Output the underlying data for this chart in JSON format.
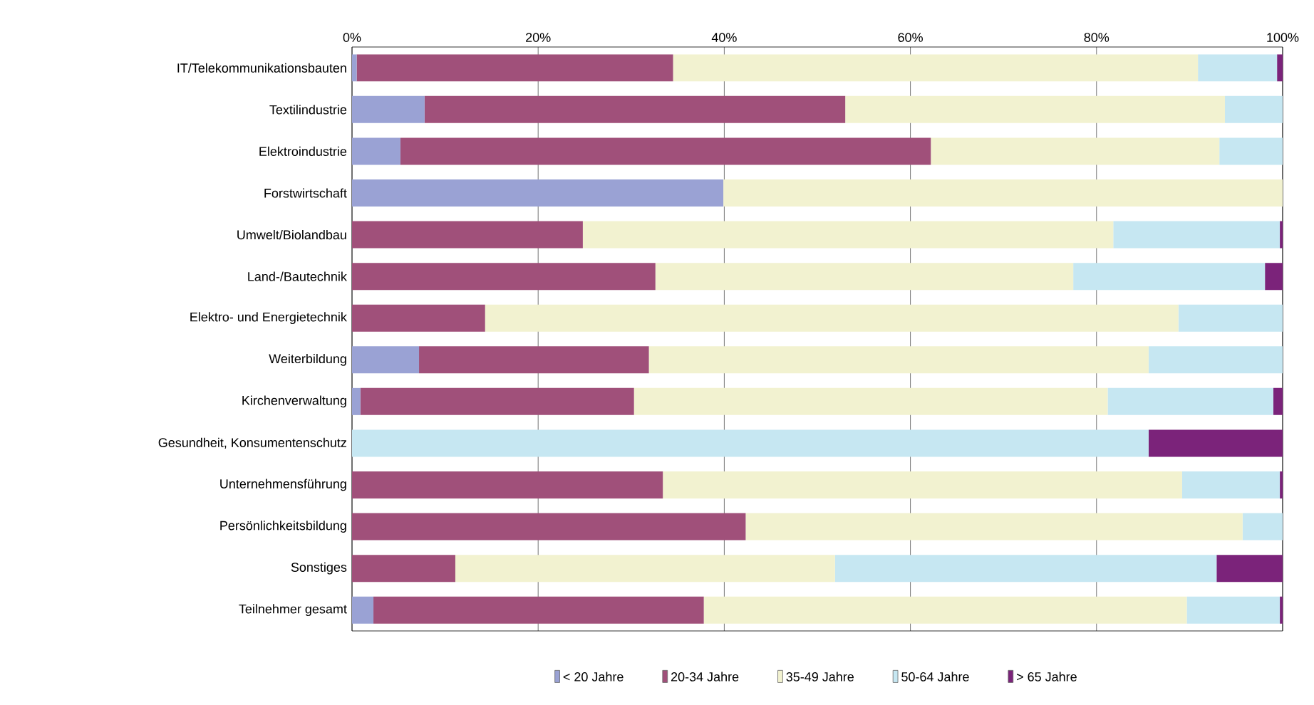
{
  "chart_data": {
    "type": "bar",
    "orientation": "horizontal",
    "stacked": true,
    "categories": [
      "IT/Telekommunikationsbauten",
      "Textilindustrie",
      "Elektroindustrie",
      "Forstwirtschaft",
      "Umwelt/Biolandbau",
      "Land-/Bautechnik",
      "Elektro- und Energietechnik",
      "Weiterbildung",
      "Kirchenverwaltung",
      "Gesundheit, Konsumentenschutz",
      "Unternehmensführung",
      "Persönlichkeitsbildung",
      "Sonstiges",
      "Teilnehmer gesamt"
    ],
    "series": [
      {
        "name": "< 20 Jahre",
        "color": "#9aa2d4",
        "values": [
          0.5,
          7.8,
          5.2,
          39.9,
          0,
          0,
          0,
          7.2,
          0.9,
          0,
          0,
          0,
          0,
          2.3
        ]
      },
      {
        "name": "20-34 Jahre",
        "color": "#a0507a",
        "values": [
          34.0,
          45.2,
          57.0,
          0,
          24.8,
          32.6,
          14.3,
          24.7,
          29.4,
          0,
          33.4,
          42.3,
          11.1,
          35.5
        ]
      },
      {
        "name": "35-49 Jahre",
        "color": "#f2f2d0",
        "values": [
          56.4,
          40.8,
          31.0,
          60.1,
          57.0,
          44.9,
          74.5,
          53.7,
          50.9,
          0,
          55.8,
          53.4,
          40.8,
          51.9
        ]
      },
      {
        "name": "50-64 Jahre",
        "color": "#c6e7f2",
        "values": [
          8.5,
          6.2,
          6.8,
          0,
          17.9,
          20.6,
          11.2,
          14.4,
          17.8,
          85.6,
          10.5,
          4.3,
          41.0,
          10.0
        ]
      },
      {
        "name": "> 65 Jahre",
        "color": "#7b237a",
        "values": [
          0.6,
          0,
          0,
          0,
          0.3,
          1.9,
          0,
          0,
          1.0,
          14.4,
          0.3,
          0,
          7.1,
          0.3
        ]
      }
    ],
    "xlim": [
      0,
      100
    ],
    "xticks": [
      {
        "value": 0,
        "label": "0%"
      },
      {
        "value": 20,
        "label": "20%"
      },
      {
        "value": 40,
        "label": "40%"
      },
      {
        "value": 60,
        "label": "60%"
      },
      {
        "value": 80,
        "label": "80%"
      },
      {
        "value": 100,
        "label": "100%"
      }
    ],
    "grid": "x",
    "legend": "bottom"
  }
}
